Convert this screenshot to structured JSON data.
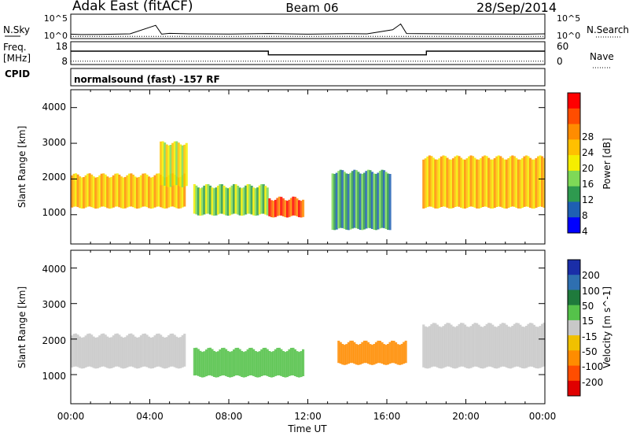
{
  "header": {
    "station": "Adak East (fitACF)",
    "beam": "Beam 06",
    "date": "28/Sep/2014"
  },
  "labels": {
    "nsky": "N.Sky",
    "freq_line1": "Freq.",
    "freq_line2": "[MHz]",
    "cpid": "CPID",
    "nsearch": "N.Search",
    "nave": "Nave",
    "cpid_text": "normalsound (fast) -157 RF"
  },
  "noise_axis": {
    "left_ticks": [
      "10^5",
      "10^0"
    ],
    "right_ticks": [
      "10^5",
      "10^0"
    ]
  },
  "freq_axis": {
    "left_ticks": [
      "18",
      "8"
    ],
    "right_ticks": [
      "60",
      "0"
    ]
  },
  "power_colorbar": {
    "title": "Power [dB]",
    "ticks": [
      "28",
      "24",
      "20",
      "16",
      "12",
      "8",
      "4"
    ],
    "colors": [
      "#ff0000",
      "#ff4d00",
      "#ff8c00",
      "#ffc000",
      "#f5ee00",
      "#7ed957",
      "#2e9a4f",
      "#1e5fb3",
      "#0000ff"
    ]
  },
  "velocity_colorbar": {
    "title": "Velocity [m s^-1]",
    "ticks": [
      "200",
      "100",
      "50",
      "15",
      "-15",
      "-50",
      "-100",
      "-200"
    ],
    "colors": [
      "#1a2ea8",
      "#2e6fb0",
      "#1f7a3c",
      "#55c24a",
      "#c8c8c8",
      "#f0c000",
      "#ff8c00",
      "#ff4d00",
      "#e00000"
    ]
  },
  "chart_data": [
    {
      "type": "line",
      "panel": "noise",
      "x_unit": "UT hours",
      "series": [
        {
          "name": "N.Sky",
          "x": [
            0,
            0.5,
            1.5,
            3,
            4.3,
            4.6,
            5,
            6,
            8,
            10,
            12,
            14,
            15,
            16.3,
            16.7,
            17,
            19,
            21,
            23,
            24
          ],
          "values": [
            10,
            8,
            9,
            12,
            1000,
            10,
            15,
            12,
            11,
            14,
            10,
            13,
            12,
            100,
            2000,
            14,
            12,
            11,
            10,
            12
          ]
        },
        {
          "name": "N.Search",
          "x": [
            0,
            6,
            12,
            18,
            24
          ],
          "values": [
            3,
            3,
            3,
            3,
            3
          ]
        }
      ],
      "ylim": [
        "10^0",
        "10^5"
      ],
      "yscale": "log"
    },
    {
      "type": "line",
      "panel": "frequency",
      "x_unit": "UT hours",
      "series": [
        {
          "name": "Freq. [MHz]",
          "x": [
            0,
            10,
            10,
            18,
            18,
            24
          ],
          "values": [
            14.5,
            14.5,
            12.5,
            12.5,
            14.5,
            14.5
          ]
        },
        {
          "name": "Nave",
          "x": [
            0,
            24
          ],
          "values": [
            6,
            6
          ]
        }
      ],
      "ylim_left": [
        8,
        18
      ],
      "ylim_right": [
        0,
        60
      ]
    },
    {
      "type": "heatmap",
      "panel": "power",
      "title": "Power [dB]",
      "xlabel": "",
      "ylabel": "Slant Range [km]",
      "xlim": [
        "00:00",
        "00:00"
      ],
      "ylim": [
        180,
        4500
      ],
      "ytick_labels": [
        "1000",
        "2000",
        "3000",
        "4000"
      ],
      "xtick_labels": [
        "00:00",
        "04:00",
        "08:00",
        "12:00",
        "16:00",
        "20:00",
        "00:00"
      ],
      "color_ticks": [
        4,
        8,
        12,
        16,
        20,
        24,
        28
      ],
      "echo_regions": [
        {
          "t0": 0.0,
          "t1": 5.8,
          "r_lower": 1200,
          "r_upper": 2100,
          "power_db": 18
        },
        {
          "t0": 4.5,
          "t1": 5.9,
          "r_lower": 1800,
          "r_upper": 3000,
          "power_db": 16
        },
        {
          "t0": 6.2,
          "t1": 10.0,
          "r_lower": 1000,
          "r_upper": 1800,
          "power_db": 10
        },
        {
          "t0": 10.0,
          "t1": 11.8,
          "r_lower": 950,
          "r_upper": 1450,
          "power_db": 27
        },
        {
          "t0": 13.2,
          "t1": 16.2,
          "r_lower": 600,
          "r_upper": 2200,
          "power_db": 6
        },
        {
          "t0": 17.8,
          "t1": 24.0,
          "r_lower": 1200,
          "r_upper": 2600,
          "power_db": 20
        }
      ]
    },
    {
      "type": "heatmap",
      "panel": "velocity",
      "title": "Velocity [m s^-1]",
      "xlabel": "Time UT",
      "ylabel": "Slant Range [km]",
      "xlim": [
        "00:00",
        "00:00"
      ],
      "ylim": [
        180,
        4500
      ],
      "ytick_labels": [
        "1000",
        "2000",
        "3000",
        "4000"
      ],
      "xtick_labels": [
        "00:00",
        "04:00",
        "08:00",
        "12:00",
        "16:00",
        "20:00",
        "00:00"
      ],
      "color_ticks": [
        -200,
        -100,
        -50,
        -15,
        15,
        50,
        100,
        200
      ],
      "echo_regions": [
        {
          "t0": 0.0,
          "t1": 5.8,
          "r_lower": 1200,
          "r_upper": 2100,
          "velocity": 0
        },
        {
          "t0": 6.2,
          "t1": 11.8,
          "r_lower": 950,
          "r_upper": 1700,
          "velocity": 40
        },
        {
          "t0": 13.5,
          "t1": 17.0,
          "r_lower": 1300,
          "r_upper": 1900,
          "velocity": -60
        },
        {
          "t0": 17.8,
          "t1": 24.0,
          "r_lower": 1200,
          "r_upper": 2400,
          "velocity": 0
        }
      ]
    }
  ]
}
